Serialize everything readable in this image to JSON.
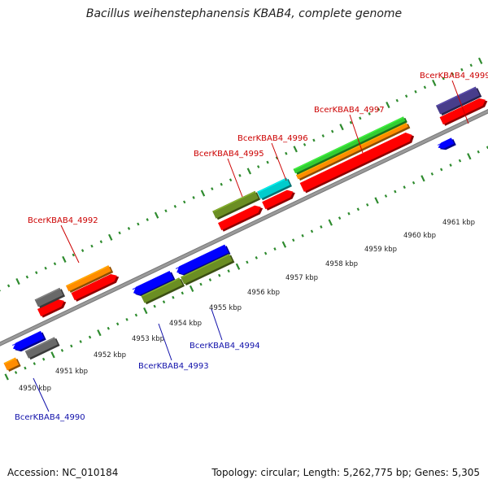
{
  "title": "Bacillus weihenstephanensis KBAB4, complete genome",
  "footer": {
    "accession": "Accession: NC_010184",
    "topology": "Topology: circular; Length: 5,262,775 bp; Genes: 5,305"
  },
  "colors": {
    "backbone": "#9a9a9a",
    "tick": "#2e8b2e",
    "label_forward": "#cc0000",
    "label_reverse": "#1010aa"
  },
  "kbp_ticks": [
    "4950 kbp",
    "4951 kbp",
    "4952 kbp",
    "4953 kbp",
    "4954 kbp",
    "4955 kbp",
    "4956 kbp",
    "4957 kbp",
    "4958 kbp",
    "4959 kbp",
    "4960 kbp",
    "4961 kbp"
  ],
  "gene_labels": [
    {
      "text": "BcerKBAB4_4999",
      "strand": "forward"
    },
    {
      "text": "BcerKBAB4_4997",
      "strand": "forward"
    },
    {
      "text": "BcerKBAB4_4996",
      "strand": "forward"
    },
    {
      "text": "BcerKBAB4_4995",
      "strand": "forward"
    },
    {
      "text": "BcerKBAB4_4992",
      "strand": "forward"
    },
    {
      "text": "BcerKBAB4_4994",
      "strand": "reverse"
    },
    {
      "text": "BcerKBAB4_4993",
      "strand": "reverse"
    },
    {
      "text": "BcerKBAB4_4990",
      "strand": "reverse"
    }
  ],
  "features": [
    {
      "color": "#ff0000",
      "strand": "forward",
      "track": "outer-1"
    },
    {
      "color": "#ff0000",
      "strand": "forward",
      "track": "outer-1"
    },
    {
      "color": "#ff0000",
      "strand": "forward",
      "track": "outer-1"
    },
    {
      "color": "#ff0000",
      "strand": "forward",
      "track": "outer-1"
    },
    {
      "color": "#ff0000",
      "strand": "forward",
      "track": "outer-1"
    },
    {
      "color": "#ff0000",
      "strand": "forward",
      "track": "outer-1"
    },
    {
      "color": "#ff8c00",
      "strand": "none",
      "track": "outer-2"
    },
    {
      "color": "#ff8c00",
      "strand": "none",
      "track": "outer-2"
    },
    {
      "color": "#696969",
      "strand": "none",
      "track": "outer-3"
    },
    {
      "color": "#6b8e23",
      "strand": "none",
      "track": "outer-3"
    },
    {
      "color": "#00cccc",
      "strand": "none",
      "track": "outer-3"
    },
    {
      "color": "#32cd32",
      "strand": "none",
      "track": "outer-3"
    },
    {
      "color": "#483d8b",
      "strand": "none",
      "track": "outer-3"
    },
    {
      "color": "#0000ff",
      "strand": "reverse",
      "track": "inner-1"
    },
    {
      "color": "#0000ff",
      "strand": "reverse",
      "track": "inner-1"
    },
    {
      "color": "#0000ff",
      "strand": "reverse",
      "track": "inner-1"
    },
    {
      "color": "#0000ff",
      "strand": "reverse",
      "track": "inner-1"
    },
    {
      "color": "#696969",
      "strand": "none",
      "track": "inner-2"
    },
    {
      "color": "#6b8e23",
      "strand": "none",
      "track": "inner-2"
    },
    {
      "color": "#6b8e23",
      "strand": "none",
      "track": "inner-2"
    },
    {
      "color": "#ff8c00",
      "strand": "none",
      "track": "inner-2"
    }
  ]
}
